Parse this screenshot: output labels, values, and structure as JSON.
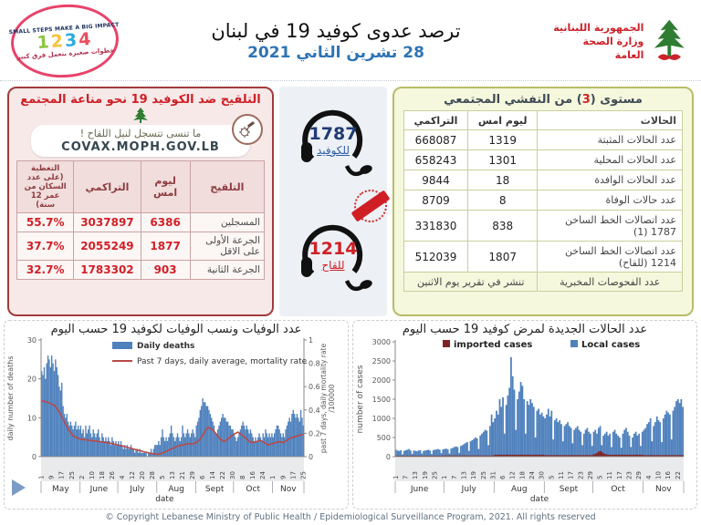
{
  "colors": {
    "accent_red": "#cf1f25",
    "accent_blue": "#2e74b5",
    "bar_blue": "#4f81bd",
    "line_red": "#b94a48",
    "imported_dark": "#7f2423"
  },
  "header": {
    "title": "ترصد عدوى كوفيد 19 في لبنان",
    "date": "28 تشرين الثاني 2021",
    "ministry": {
      "line1": "الجمهورية اللبنانية",
      "line2": "وزارة الصحة العامة"
    },
    "stamp": {
      "top": "SMALL STEPS MAKE A BIG IMPACT",
      "n1": "1",
      "n2": "2",
      "n3": "3",
      "n4": "4",
      "bottom": "خطوات صغيرة بتعمل فرق كبير"
    }
  },
  "vaccination_box": {
    "title": "التلقيح ضد الكوفيد 19  نحو مناعة المجتمع",
    "reminder": "ما تنسى تتسجل لنيل اللقاح !",
    "covax_url": "COVAX.MOPH.GOV.LB",
    "table": {
      "headers": {
        "c0": "التلقيح",
        "c1": "ليوم امس",
        "c2": "التراكمي",
        "c3": "التغطية (على عدد السكان من عمر 12 سنة)"
      },
      "rows": [
        {
          "label": "المسجلين",
          "yesterday": "6386",
          "cumulative": "3037897",
          "coverage": "55.7%"
        },
        {
          "label": "الجرعة الأولى على الاقل",
          "yesterday": "1877",
          "cumulative": "2055249",
          "coverage": "37.7%"
        },
        {
          "label": "الجرعة الثانية",
          "yesterday": "903",
          "cumulative": "1783302",
          "coverage": "32.7%"
        }
      ]
    }
  },
  "hotlines": {
    "covid": {
      "number": "1787",
      "label": "للكوفيد"
    },
    "vaccine": {
      "number": "1214",
      "label": "للقاح"
    }
  },
  "cases_box": {
    "title_pre": "مستوى (",
    "level": "3",
    "title_post": ") من التفشي المجتمعي",
    "table": {
      "headers": {
        "c0": "الحالات",
        "c1": "ليوم امس",
        "c2": "التراكمي"
      },
      "rows": [
        {
          "label": "عدد الحالات المثبتة",
          "yesterday": "1319",
          "cumulative": "668087"
        },
        {
          "label": "عدد الحالات المحلية",
          "yesterday": "1301",
          "cumulative": "658243"
        },
        {
          "label": "عدد الحالات الوافدة",
          "yesterday": "18",
          "cumulative": "9844"
        },
        {
          "label": "عدد حالات الوفاة",
          "yesterday": "8",
          "cumulative": "8709"
        },
        {
          "label": "عدد اتصالات الخط الساخن 1787 (1)",
          "yesterday": "838",
          "cumulative": "331830"
        },
        {
          "label": "عدد اتصالات الخط الساخن 1214 (للقاح)",
          "yesterday": "1807",
          "cumulative": "512039"
        }
      ],
      "lab_tests": {
        "label": "عدد الفحوصات المخبرية",
        "note": "تنشر في تقرير يوم الاثنين"
      }
    }
  },
  "footer": {
    "copyright": "© Copyright Lebanese Ministry of Public Health / Epidemiological Surveillance Program, 2021. All rights reserved"
  },
  "chart_data": [
    {
      "type": "bar",
      "title": "عدد الوفيات ونسب الوفيات لكوفيد 19 حسب اليوم",
      "ylabel_left": "daily number of deaths",
      "ylabel_right": [
        "past 7 days, daily mortality rate",
        "/100000"
      ],
      "xlabel": "date",
      "ylim_left": [
        0,
        30
      ],
      "yticks_left": [
        0,
        10,
        20,
        30
      ],
      "ylim_right": [
        0,
        1
      ],
      "yticks_right": [
        0,
        0.2,
        0.4,
        0.6,
        0.8,
        1
      ],
      "legend": [
        {
          "label": "Daily deaths",
          "type": "bar",
          "color": "#4f81bd"
        },
        {
          "label": "Past 7 days, daily average, mortality rate",
          "type": "line",
          "color": "#b94a48"
        }
      ],
      "months": [
        {
          "name": "May",
          "days": 31
        },
        {
          "name": "June",
          "days": 30
        },
        {
          "name": "July",
          "days": 31
        },
        {
          "name": "Aug",
          "days": 31
        },
        {
          "name": "Sept",
          "days": 30
        },
        {
          "name": "Oct",
          "days": 31
        },
        {
          "name": "Nov",
          "days": 25
        }
      ],
      "xticks": [
        [
          0,
          "1"
        ],
        [
          8,
          "9"
        ],
        [
          16,
          "17"
        ],
        [
          24,
          "25"
        ],
        [
          32,
          "2"
        ],
        [
          40,
          "10"
        ],
        [
          48,
          "18"
        ],
        [
          56,
          "26"
        ],
        [
          64,
          "4"
        ],
        [
          72,
          "12"
        ],
        [
          80,
          "20"
        ],
        [
          88,
          "28"
        ],
        [
          96,
          "5"
        ],
        [
          104,
          "13"
        ],
        [
          112,
          "21"
        ],
        [
          120,
          "29"
        ],
        [
          128,
          "6"
        ],
        [
          136,
          "14"
        ],
        [
          144,
          "22"
        ],
        [
          152,
          "30"
        ],
        [
          160,
          "8"
        ],
        [
          168,
          "16"
        ],
        [
          176,
          "24"
        ],
        [
          184,
          "1"
        ],
        [
          192,
          "9"
        ],
        [
          200,
          "17"
        ],
        [
          208,
          "25"
        ]
      ],
      "colors": {
        "bar": "#4f81bd",
        "line": "#b94a48"
      },
      "bars": [
        22,
        21,
        23,
        20,
        24,
        26,
        25,
        23,
        26,
        24,
        22,
        25,
        23,
        21,
        18,
        17,
        19,
        13,
        11,
        10,
        11,
        9,
        8,
        9,
        8,
        7,
        8,
        9,
        7,
        8,
        7,
        8,
        6,
        7,
        5,
        8,
        6,
        7,
        8,
        6,
        5,
        7,
        6,
        5,
        6,
        7,
        5,
        4,
        6,
        5,
        4,
        5,
        4,
        5,
        4,
        3,
        5,
        4,
        3,
        4,
        3,
        4,
        3,
        4,
        3,
        2,
        3,
        2,
        3,
        2,
        2,
        3,
        2,
        2,
        1,
        2,
        2,
        1,
        2,
        1,
        1,
        1,
        1,
        1,
        0,
        1,
        1,
        2,
        1,
        2,
        3,
        3,
        3,
        4,
        3,
        5,
        7,
        5,
        4,
        5,
        4,
        5,
        6,
        8,
        6,
        5,
        4,
        5,
        6,
        5,
        4,
        5,
        8,
        6,
        5,
        6,
        7,
        6,
        5,
        6,
        7,
        6,
        5,
        8,
        9,
        10,
        12,
        13,
        15,
        14,
        14,
        13,
        13,
        12,
        11,
        10,
        9,
        8,
        6,
        6,
        7,
        8,
        9,
        10,
        11,
        10,
        10,
        9,
        9,
        8,
        8,
        7,
        7,
        6,
        5,
        4,
        5,
        6,
        7,
        8,
        9,
        8,
        7,
        8,
        7,
        6,
        7,
        6,
        5,
        4,
        5,
        4,
        5,
        6,
        5,
        4,
        6,
        5,
        7,
        6,
        5,
        6,
        5,
        6,
        5,
        6,
        7,
        8,
        8,
        7,
        6,
        5,
        6,
        5,
        7,
        8,
        9,
        10,
        9,
        11,
        12,
        11,
        10,
        11,
        10,
        9,
        12,
        10,
        8
      ],
      "line_anchors": [
        [
          0,
          0.48
        ],
        [
          6,
          0.46
        ],
        [
          10,
          0.44
        ],
        [
          13,
          0.4
        ],
        [
          16,
          0.34
        ],
        [
          19,
          0.28
        ],
        [
          22,
          0.22
        ],
        [
          25,
          0.18
        ],
        [
          28,
          0.16
        ],
        [
          31,
          0.15
        ],
        [
          38,
          0.14
        ],
        [
          45,
          0.13
        ],
        [
          52,
          0.12
        ],
        [
          61,
          0.1
        ],
        [
          68,
          0.08
        ],
        [
          75,
          0.06
        ],
        [
          82,
          0.04
        ],
        [
          88,
          0.025
        ],
        [
          92,
          0.02
        ],
        [
          96,
          0.03
        ],
        [
          100,
          0.05
        ],
        [
          104,
          0.07
        ],
        [
          108,
          0.09
        ],
        [
          112,
          0.1
        ],
        [
          116,
          0.11
        ],
        [
          120,
          0.11
        ],
        [
          123,
          0.12
        ],
        [
          126,
          0.15
        ],
        [
          129,
          0.2
        ],
        [
          131,
          0.24
        ],
        [
          133,
          0.25
        ],
        [
          136,
          0.23
        ],
        [
          139,
          0.19
        ],
        [
          142,
          0.15
        ],
        [
          145,
          0.13
        ],
        [
          148,
          0.15
        ],
        [
          151,
          0.18
        ],
        [
          154,
          0.2
        ],
        [
          156,
          0.21
        ],
        [
          159,
          0.19
        ],
        [
          162,
          0.16
        ],
        [
          165,
          0.13
        ],
        [
          168,
          0.12
        ],
        [
          171,
          0.13
        ],
        [
          174,
          0.14
        ],
        [
          177,
          0.12
        ],
        [
          180,
          0.1
        ],
        [
          183,
          0.11
        ],
        [
          186,
          0.12
        ],
        [
          189,
          0.13
        ],
        [
          192,
          0.12
        ],
        [
          195,
          0.14
        ],
        [
          198,
          0.16
        ],
        [
          201,
          0.17
        ],
        [
          204,
          0.18
        ],
        [
          208,
          0.19
        ]
      ]
    },
    {
      "type": "bar",
      "title": "عدد الحالات الجديدة لمرض كوفيد 19 حسب اليوم",
      "ylabel": "number of cases",
      "xlabel": "date",
      "ylim": [
        0,
        3000
      ],
      "yticks": [
        0,
        500,
        1000,
        1500,
        2000,
        2500,
        3000
      ],
      "legend": [
        {
          "label": "imported cases",
          "color": "#7f2423"
        },
        {
          "label": "Local cases",
          "color": "#4f81bd"
        }
      ],
      "months": [
        {
          "name": "June",
          "days": 30
        },
        {
          "name": "July",
          "days": 31
        },
        {
          "name": "Aug",
          "days": 31
        },
        {
          "name": "Sept",
          "days": 30
        },
        {
          "name": "Oct",
          "days": 31
        },
        {
          "name": "Nov",
          "days": 25
        }
      ],
      "xticks": [
        [
          0,
          "1"
        ],
        [
          6,
          "7"
        ],
        [
          12,
          "13"
        ],
        [
          18,
          "19"
        ],
        [
          24,
          "25"
        ],
        [
          30,
          "1"
        ],
        [
          36,
          "7"
        ],
        [
          42,
          "13"
        ],
        [
          48,
          "19"
        ],
        [
          54,
          "25"
        ],
        [
          60,
          "31"
        ],
        [
          66,
          "6"
        ],
        [
          72,
          "12"
        ],
        [
          78,
          "18"
        ],
        [
          84,
          "24"
        ],
        [
          90,
          "30"
        ],
        [
          96,
          "5"
        ],
        [
          102,
          "11"
        ],
        [
          108,
          "17"
        ],
        [
          114,
          "23"
        ],
        [
          120,
          "29"
        ],
        [
          126,
          "5"
        ],
        [
          132,
          "11"
        ],
        [
          138,
          "17"
        ],
        [
          144,
          "23"
        ],
        [
          150,
          "29"
        ],
        [
          156,
          "4"
        ],
        [
          162,
          "10"
        ],
        [
          168,
          "16"
        ],
        [
          174,
          "22"
        ]
      ],
      "colors": {
        "local": "#4f81bd",
        "imported": "#7f2423"
      },
      "series": [
        {
          "name": "Local cases",
          "values": [
            180,
            160,
            150,
            170,
            60,
            150,
            170,
            180,
            200,
            160,
            70,
            160,
            150,
            140,
            160,
            170,
            80,
            150,
            160,
            170,
            180,
            160,
            70,
            170,
            180,
            190,
            200,
            180,
            90,
            190,
            200,
            210,
            190,
            80,
            210,
            230,
            250,
            270,
            250,
            100,
            280,
            300,
            330,
            360,
            380,
            150,
            400,
            430,
            460,
            500,
            480,
            200,
            550,
            600,
            650,
            700,
            680,
            300,
            800,
            1100,
            900,
            1000,
            1200,
            1100,
            1500,
            1300,
            1550,
            600,
            1350,
            1600,
            1800,
            2600,
            2100,
            1750,
            700,
            1500,
            1700,
            1950,
            1850,
            1500,
            600,
            1450,
            1350,
            1500,
            1400,
            1300,
            500,
            1200,
            1250,
            1100,
            1150,
            1050,
            1000,
            1100,
            1250,
            1050,
            1200,
            450,
            950,
            1000,
            900,
            950,
            850,
            400,
            800,
            850,
            900,
            800,
            750,
            350,
            700,
            750,
            800,
            700,
            650,
            300,
            600,
            700,
            750,
            650,
            600,
            280,
            650,
            700,
            600,
            750,
            800,
            300,
            550,
            600,
            650,
            550,
            600,
            250,
            650,
            700,
            600,
            550,
            500,
            230,
            600,
            700,
            750,
            650,
            550,
            250,
            500,
            600,
            650,
            550,
            600,
            280,
            650,
            700,
            750,
            850,
            900,
            1000,
            400,
            800,
            900,
            1050,
            950,
            900,
            380,
            1000,
            1100,
            1200,
            1150,
            1100,
            450,
            1200,
            1300,
            1450,
            1500,
            1400,
            1500,
            1300
          ]
        },
        {
          "name": "imported cases",
          "values": [
            25,
            25,
            25,
            25,
            25,
            25,
            25,
            25,
            25,
            25,
            25,
            25,
            25,
            25,
            25,
            25,
            25,
            25,
            25,
            25,
            25,
            25,
            25,
            25,
            25,
            25,
            25,
            25,
            25,
            25,
            30,
            30,
            30,
            30,
            30,
            30,
            30,
            30,
            30,
            30,
            30,
            30,
            30,
            30,
            30,
            30,
            30,
            30,
            30,
            30,
            30,
            30,
            30,
            30,
            30,
            30,
            30,
            30,
            30,
            30,
            30,
            50,
            50,
            50,
            50,
            50,
            50,
            50,
            50,
            50,
            50,
            50,
            50,
            50,
            50,
            50,
            50,
            50,
            50,
            50,
            50,
            50,
            50,
            50,
            50,
            50,
            50,
            50,
            50,
            50,
            50,
            50,
            40,
            40,
            40,
            40,
            40,
            40,
            40,
            40,
            40,
            40,
            40,
            40,
            40,
            40,
            40,
            40,
            40,
            40,
            40,
            40,
            40,
            40,
            40,
            40,
            40,
            40,
            40,
            40,
            40,
            40,
            60,
            70,
            100,
            130,
            150,
            120,
            90,
            70,
            60,
            50,
            50,
            50,
            50,
            50,
            50,
            50,
            50,
            50,
            50,
            50,
            50,
            50,
            50,
            50,
            50,
            50,
            50,
            50,
            50,
            50,
            50,
            40,
            40,
            40,
            40,
            40,
            40,
            40,
            40,
            40,
            40,
            40,
            40,
            40,
            40,
            40,
            40,
            40,
            40,
            40,
            40,
            40,
            40,
            40,
            40,
            40
          ]
        }
      ]
    }
  ]
}
